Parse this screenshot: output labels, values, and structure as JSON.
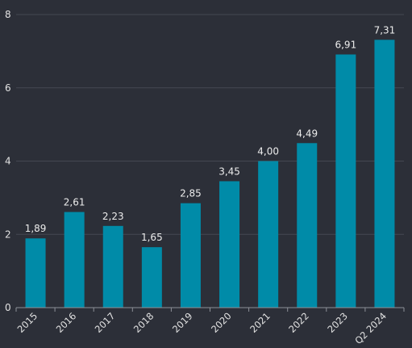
{
  "chart_data": {
    "type": "bar",
    "categories": [
      "2015",
      "2016",
      "2017",
      "2018",
      "2019",
      "2020",
      "2021",
      "2022",
      "2023",
      "Q2 2024"
    ],
    "values": [
      1.89,
      2.61,
      2.23,
      1.65,
      2.85,
      3.45,
      4.0,
      4.49,
      6.91,
      7.31
    ],
    "value_labels": [
      "1,89",
      "2,61",
      "2,23",
      "1,65",
      "2,85",
      "3,45",
      "4,00",
      "4,49",
      "6,91",
      "7,31"
    ],
    "ylim": [
      0,
      8
    ],
    "y_ticks": [
      0,
      2,
      4,
      6,
      8
    ],
    "y_tick_labels": [
      "0",
      "2",
      "4",
      "6",
      "8"
    ],
    "title": "",
    "xlabel": "",
    "ylabel": "",
    "grid": true,
    "bar_color": "#008ba8",
    "background_color": "#2c2f38"
  }
}
